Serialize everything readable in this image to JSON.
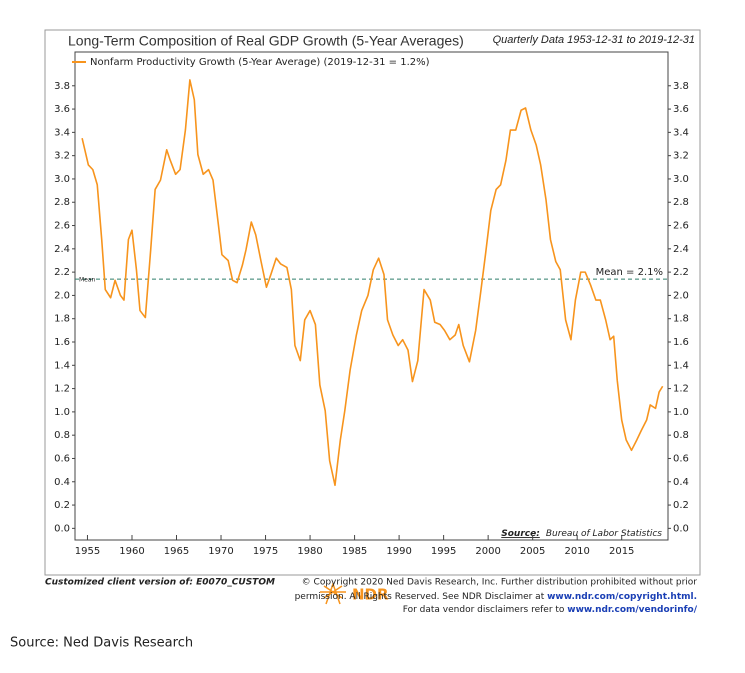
{
  "chart_data": {
    "type": "line",
    "title": "Long-Term Composition of Real GDP Growth (5-Year Averages)",
    "subtitle": "Quarterly Data 1953-12-31 to 2019-12-31",
    "x": [
      1954.4,
      1955.1,
      1955.6,
      1956.1,
      1956.6,
      1957,
      1957.6,
      1958.1,
      1958.7,
      1959.1,
      1959.6,
      1960,
      1960.5,
      1960.9,
      1961.5,
      1962.1,
      1962.6,
      1963.2,
      1963.9,
      1964.3,
      1964.9,
      1965.4,
      1966,
      1966.5,
      1967,
      1967.4,
      1968,
      1968.6,
      1969.1,
      1969.7,
      1970.1,
      1970.8,
      1971.3,
      1971.8,
      1972.4,
      1972.8,
      1973.4,
      1973.9,
      1974.5,
      1975.1,
      1975.6,
      1976.2,
      1976.7,
      1977.4,
      1977.9,
      1978.3,
      1978.9,
      1979.4,
      1980,
      1980.6,
      1981.1,
      1981.7,
      1982.2,
      1982.8,
      1983.4,
      1983.9,
      1984.5,
      1985.2,
      1985.8,
      1986.5,
      1987.1,
      1987.7,
      1988.3,
      1988.7,
      1989.3,
      1989.9,
      1990.4,
      1991,
      1991.5,
      1992.1,
      1992.8,
      1993.5,
      1994,
      1994.6,
      1995.1,
      1995.7,
      1996.3,
      1996.7,
      1997.2,
      1997.9,
      1998.6,
      1999.2,
      1999.7,
      2000.3,
      2000.9,
      2001.4,
      2002,
      2002.5,
      2003.1,
      2003.7,
      2004.2,
      2004.8,
      2005.4,
      2005.9,
      2006.5,
      2007,
      2007.6,
      2008.1,
      2008.7,
      2009.3,
      2009.8,
      2010.4,
      2010.9,
      2011.5,
      2012.1,
      2012.6,
      2013.2,
      2013.7,
      2014.1,
      2014.5,
      2015,
      2015.5,
      2016.1,
      2016.7,
      2017.2,
      2017.8,
      2018.2,
      2018.8,
      2019.2,
      2019.6
    ],
    "series": [
      {
        "name": "Nonfarm Productivity Growth (5-Year Average) (2019-12-31 = 1.2%)",
        "color": "#f7941d",
        "values": [
          3.35,
          3.12,
          3.08,
          2.95,
          2.48,
          2.05,
          1.98,
          2.13,
          2.0,
          1.96,
          2.48,
          2.56,
          2.22,
          1.87,
          1.81,
          2.39,
          2.91,
          2.99,
          3.25,
          3.16,
          3.04,
          3.08,
          3.42,
          3.85,
          3.68,
          3.21,
          3.04,
          3.08,
          2.99,
          2.61,
          2.35,
          2.3,
          2.13,
          2.11,
          2.26,
          2.39,
          2.63,
          2.52,
          2.29,
          2.07,
          2.18,
          2.32,
          2.27,
          2.24,
          2.05,
          1.57,
          1.44,
          1.79,
          1.87,
          1.75,
          1.23,
          1.01,
          0.58,
          0.37,
          0.76,
          1.01,
          1.36,
          1.66,
          1.87,
          2.0,
          2.22,
          2.32,
          2.18,
          1.79,
          1.66,
          1.57,
          1.62,
          1.53,
          1.26,
          1.44,
          2.05,
          1.96,
          1.77,
          1.75,
          1.7,
          1.62,
          1.66,
          1.75,
          1.57,
          1.43,
          1.7,
          2.05,
          2.35,
          2.73,
          2.91,
          2.95,
          3.16,
          3.42,
          3.42,
          3.59,
          3.61,
          3.42,
          3.29,
          3.12,
          2.82,
          2.48,
          2.29,
          2.22,
          1.79,
          1.62,
          1.96,
          2.2,
          2.2,
          2.09,
          1.96,
          1.96,
          1.79,
          1.62,
          1.65,
          1.27,
          0.93,
          0.76,
          0.67,
          0.76,
          0.84,
          0.93,
          1.06,
          1.03,
          1.17,
          1.22
        ]
      }
    ],
    "mean_line": {
      "value": 2.14,
      "label": "Mean = 2.1%"
    },
    "mean_tag": "Mean",
    "xlim": [
      1953.6,
      2020.2
    ],
    "xticks": [
      1955,
      1960,
      1965,
      1970,
      1975,
      1980,
      1985,
      1990,
      1995,
      2000,
      2005,
      2010,
      2015
    ],
    "ylim": [
      -0.1,
      4.09
    ],
    "yticks": [
      {
        "value": 0,
        "label": "0.0"
      },
      0.2,
      0.4,
      0.6,
      0.8,
      {
        "value": 1,
        "label": "1.0"
      },
      1.2,
      1.4,
      1.6,
      1.8,
      {
        "value": 2,
        "label": "2.0"
      },
      2.2,
      2.4,
      2.6,
      2.8,
      {
        "value": 3,
        "label": "3.0"
      },
      3.2,
      3.4,
      3.6,
      3.8
    ],
    "source_label": "Source:",
    "source_text": "Bureau of Labor Statistics"
  },
  "footer": {
    "client": "Customized client version of: E0070_CUSTOM",
    "logo": "NDR",
    "copyright_1": "© Copyright 2020 Ned Davis Research, Inc. Further distribution prohibited without prior",
    "copyright_2": "permission. All Rights Reserved. See NDR Disclaimer at ",
    "copyright_2_link": "www.ndr.com/copyright.html.",
    "copyright_3": "For data vendor disclaimers refer to ",
    "copyright_3_link": "www.ndr.com/vendorinfo/"
  },
  "page_source": "Source: Ned Davis Research"
}
